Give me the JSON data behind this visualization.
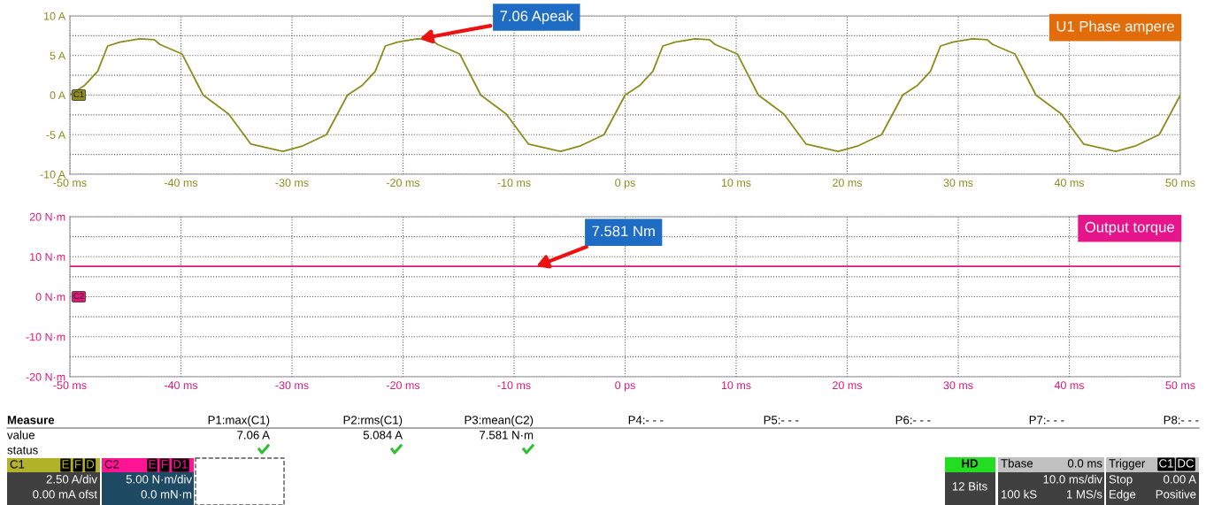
{
  "chart_data": [
    {
      "type": "line",
      "title": "U1 Phase ampere",
      "ylim": [
        -10,
        10
      ],
      "xlim": [
        -50,
        50
      ],
      "grid": true,
      "yticks": [
        {
          "value": 10,
          "label": "10 A"
        },
        {
          "value": 7.5,
          "label": null
        },
        {
          "value": 5,
          "label": "5 A"
        },
        {
          "value": 2.5,
          "label": null
        },
        {
          "value": 0,
          "label": "0 A"
        },
        {
          "value": -2.5,
          "label": null
        },
        {
          "value": -5,
          "label": "-5 A"
        },
        {
          "value": -7.5,
          "label": null
        },
        {
          "value": -10,
          "label": "-10 A"
        }
      ],
      "xticks": [
        {
          "value": -50,
          "label": "-50 ms"
        },
        {
          "value": -40,
          "label": "-40 ms"
        },
        {
          "value": -30,
          "label": "-30 ms"
        },
        {
          "value": -20,
          "label": "-20 ms"
        },
        {
          "value": -10,
          "label": "-10 ms"
        },
        {
          "value": 0,
          "label": "0 ps"
        },
        {
          "value": 10,
          "label": "10 ms"
        },
        {
          "value": 20,
          "label": "20 ms"
        },
        {
          "value": 30,
          "label": "30 ms"
        },
        {
          "value": 40,
          "label": "40 ms"
        },
        {
          "value": 50,
          "label": "50 ms"
        }
      ],
      "annotations": [
        {
          "text": "7.06 Apeak",
          "x": -18.5,
          "y": 7.1
        },
        "C1"
      ],
      "series": [
        {
          "color": "#8c8c1c",
          "x": [
            -50,
            -48.7,
            -47.5,
            -46.6,
            -45.5,
            -43.7,
            -42.4,
            -41.9,
            -39.9,
            -38,
            -35.7,
            -33.7,
            -31.2,
            -30.8,
            -30,
            -29,
            -26.9,
            -25,
            -23.7,
            -22.5,
            -21.6,
            -20.5,
            -18.7,
            -17.4,
            -16.9,
            -14.9,
            -13,
            -10.7,
            -8.7,
            -6.2,
            -5.8,
            -5,
            -4,
            -1.9,
            0,
            1.3,
            2.5,
            3.4,
            4.5,
            6.3,
            7.6,
            8.1,
            10.1,
            12,
            14.3,
            16.3,
            18.8,
            19.2,
            20,
            21,
            23.1,
            25,
            26.3,
            27.5,
            28.4,
            29.5,
            31.3,
            32.6,
            33.1,
            35.1,
            37,
            39.3,
            41.3,
            43.8,
            44.2,
            45,
            46,
            48.1,
            50
          ],
          "values": [
            0,
            1.2,
            3.0,
            6.2,
            6.7,
            7.1,
            7.0,
            6.4,
            5.2,
            0,
            -2.4,
            -6.2,
            -7.0,
            -7.1,
            -6.8,
            -6.4,
            -5.0,
            0,
            1.2,
            3.0,
            6.2,
            6.7,
            7.1,
            7.0,
            6.4,
            5.2,
            0,
            -2.4,
            -6.2,
            -7.0,
            -7.1,
            -6.8,
            -6.4,
            -5.0,
            0,
            1.2,
            3.0,
            6.2,
            6.7,
            7.1,
            7.0,
            6.4,
            5.2,
            0,
            -2.4,
            -6.2,
            -7.0,
            -7.1,
            -6.8,
            -6.4,
            -5.0,
            0,
            1.2,
            3.0,
            6.2,
            6.7,
            7.1,
            7.0,
            6.4,
            5.2,
            0,
            -2.4,
            -6.2,
            -7.0,
            -7.1,
            -6.8,
            -6.4,
            -5.0,
            0
          ]
        }
      ]
    },
    {
      "type": "line",
      "title": "Output torque",
      "ylim": [
        -20,
        20
      ],
      "xlim": [
        -50,
        50
      ],
      "grid": true,
      "yticks": [
        {
          "value": 20,
          "label": "20 N·m"
        },
        {
          "value": 15,
          "label": null
        },
        {
          "value": 10,
          "label": "10 N·m"
        },
        {
          "value": 5,
          "label": null
        },
        {
          "value": 0,
          "label": "0 N·m"
        },
        {
          "value": -5,
          "label": null
        },
        {
          "value": -10,
          "label": "-10 N·m"
        },
        {
          "value": -15,
          "label": null
        },
        {
          "value": -20,
          "label": "-20 N·m"
        }
      ],
      "xticks": [
        {
          "value": -50,
          "label": "-50 ms"
        },
        {
          "value": -40,
          "label": "-40 ms"
        },
        {
          "value": -30,
          "label": "-30 ms"
        },
        {
          "value": -20,
          "label": "-20 ms"
        },
        {
          "value": -10,
          "label": "-10 ms"
        },
        {
          "value": 0,
          "label": "0 ps"
        },
        {
          "value": 10,
          "label": "10 ms"
        },
        {
          "value": 20,
          "label": "20 ms"
        },
        {
          "value": 30,
          "label": "30 ms"
        },
        {
          "value": 40,
          "label": "40 ms"
        },
        {
          "value": 50,
          "label": "50 ms"
        }
      ],
      "annotations": [
        {
          "text": "7.581 Nm",
          "x": -8,
          "y": 7.6
        },
        "C2",
        "Measure",
        "P1:max(C1)",
        "P2:rms(C1)",
        "P3:mean(C2)",
        "P4:- - -",
        "P5:- - -",
        "P6:- - -",
        "P7:- - -",
        "P8:- - -",
        "value",
        "7.06 A",
        "5.084 A",
        "7.581 N·m",
        "status",
        "C1",
        "E",
        "F",
        "D",
        "2.50 A/div",
        "0.00 mA ofst",
        "C2",
        "E",
        "F",
        "D1",
        "5.00 N·m/div",
        "0.0 mN·m",
        "HD",
        "12 Bits",
        "Tbase",
        "0.0 ms",
        "10.0 ms/div",
        "100 kS",
        "1 MS/s",
        "Trigger",
        "C1",
        "DC",
        "Stop",
        "0.00 A",
        "Edge",
        "Positive"
      ],
      "series": [
        {
          "color": "#e0187a",
          "x": [
            -50,
            -40,
            -30,
            -20,
            -10,
            0,
            10,
            20,
            30,
            40,
            50
          ],
          "values": [
            7.6,
            7.6,
            7.6,
            7.6,
            7.6,
            7.6,
            7.6,
            7.6,
            7.6,
            7.6,
            7.6
          ]
        }
      ]
    }
  ]
}
